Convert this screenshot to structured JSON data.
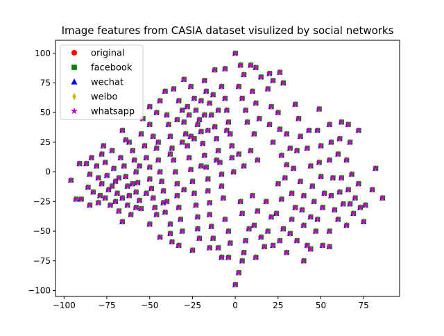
{
  "chart_data": {
    "type": "scatter",
    "title": "Image features from CASIA dataset visulized by social networks",
    "xlabel": "",
    "ylabel": "",
    "xlim": [
      -105,
      96
    ],
    "ylim": [
      -105,
      111
    ],
    "xticks": [
      -100,
      -75,
      -50,
      -25,
      0,
      25,
      50,
      75
    ],
    "yticks": [
      -100,
      -75,
      -50,
      -25,
      0,
      25,
      50,
      75,
      100
    ],
    "grid": false,
    "legend_position": "top-left",
    "series": [
      {
        "name": "original",
        "marker": "circle",
        "color": "#ff0000"
      },
      {
        "name": "facebook",
        "marker": "square",
        "color": "#008000"
      },
      {
        "name": "wechat",
        "marker": "triangle",
        "color": "#0000ff"
      },
      {
        "name": "weibo",
        "marker": "thin-diamond",
        "color": "#bfbf00"
      },
      {
        "name": "whatsapp",
        "marker": "star",
        "color": "#bf00bf"
      }
    ],
    "points": [
      [
        -96,
        -7
      ],
      [
        -93,
        -23
      ],
      [
        -90,
        -23
      ],
      [
        -91,
        7
      ],
      [
        -87,
        7
      ],
      [
        -85,
        -2
      ],
      [
        -86,
        -13
      ],
      [
        -83,
        -17
      ],
      [
        -85,
        -28
      ],
      [
        -84,
        12
      ],
      [
        -81,
        5
      ],
      [
        -80,
        -5
      ],
      [
        -78,
        -10
      ],
      [
        -79,
        -20
      ],
      [
        -80,
        -26
      ],
      [
        -78,
        15
      ],
      [
        -76,
        8
      ],
      [
        -75,
        -3
      ],
      [
        -74,
        -15
      ],
      [
        -76,
        -22
      ],
      [
        -73,
        -28
      ],
      [
        -77,
        22
      ],
      [
        -72,
        18
      ],
      [
        -71,
        3
      ],
      [
        -70,
        -8
      ],
      [
        -69,
        -18
      ],
      [
        -70,
        -25
      ],
      [
        -68,
        -33
      ],
      [
        -66,
        -42
      ],
      [
        -67,
        12
      ],
      [
        -65,
        5
      ],
      [
        -64,
        -4
      ],
      [
        -63,
        -12
      ],
      [
        -62,
        -20
      ],
      [
        -63,
        -28
      ],
      [
        -61,
        -36
      ],
      [
        -62,
        25
      ],
      [
        -60,
        18
      ],
      [
        -59,
        10
      ],
      [
        -58,
        0
      ],
      [
        -57,
        -9
      ],
      [
        -58,
        -17
      ],
      [
        -56,
        -24
      ],
      [
        -55,
        -31
      ],
      [
        -66,
        35
      ],
      [
        -64,
        27
      ],
      [
        -55,
        32
      ],
      [
        -53,
        22
      ],
      [
        -52,
        12
      ],
      [
        -50,
        4
      ],
      [
        -50,
        -6
      ],
      [
        -49,
        -14
      ],
      [
        -48,
        -22
      ],
      [
        -47,
        -30
      ],
      [
        -50,
        -44
      ],
      [
        -44,
        -55
      ],
      [
        -54,
        45
      ],
      [
        -50,
        40
      ],
      [
        -48,
        30
      ],
      [
        -46,
        20
      ],
      [
        -45,
        10
      ],
      [
        -44,
        0
      ],
      [
        -43,
        -8
      ],
      [
        -42,
        -16
      ],
      [
        -42,
        -26
      ],
      [
        -41,
        -34
      ],
      [
        -38,
        -44
      ],
      [
        -38,
        -52
      ],
      [
        -37,
        -59
      ],
      [
        -50,
        55
      ],
      [
        -46,
        50
      ],
      [
        -44,
        60
      ],
      [
        -41,
        68
      ],
      [
        -40,
        48
      ],
      [
        -39,
        40
      ],
      [
        -38,
        30
      ],
      [
        -37,
        20
      ],
      [
        -36,
        10
      ],
      [
        -35,
        0
      ],
      [
        -34,
        -10
      ],
      [
        -34,
        -20
      ],
      [
        -33,
        -30
      ],
      [
        -32,
        -40
      ],
      [
        -31,
        -50
      ],
      [
        -33,
        -62
      ],
      [
        -36,
        70
      ],
      [
        -33,
        60
      ],
      [
        -31,
        52
      ],
      [
        -30,
        42
      ],
      [
        -29,
        32
      ],
      [
        -28,
        22
      ],
      [
        -27,
        12
      ],
      [
        -26,
        2
      ],
      [
        -25,
        -8
      ],
      [
        -24,
        -18
      ],
      [
        -23,
        -28
      ],
      [
        -22,
        -38
      ],
      [
        -22,
        -48
      ],
      [
        -21,
        -56
      ],
      [
        -25,
        -66
      ],
      [
        -30,
        78
      ],
      [
        -26,
        72
      ],
      [
        -24,
        62
      ],
      [
        -23,
        52
      ],
      [
        -21,
        44
      ],
      [
        -20,
        34
      ],
      [
        -19,
        24
      ],
      [
        -18,
        14
      ],
      [
        -17,
        4
      ],
      [
        -16,
        -6
      ],
      [
        -16,
        -16
      ],
      [
        -15,
        -26
      ],
      [
        -15,
        -36
      ],
      [
        -14,
        -46
      ],
      [
        -13,
        -56
      ],
      [
        -15,
        -64
      ],
      [
        -18,
        77
      ],
      [
        -17,
        68
      ],
      [
        -15,
        58
      ],
      [
        -14,
        48
      ],
      [
        -12,
        38
      ],
      [
        -11,
        28
      ],
      [
        -10,
        18
      ],
      [
        -9,
        8
      ],
      [
        -8,
        -2
      ],
      [
        -8,
        -12
      ],
      [
        -7,
        -22
      ],
      [
        -10,
        -64
      ],
      [
        -8,
        -72
      ],
      [
        -12,
        86
      ],
      [
        -6,
        87
      ],
      [
        -8,
        72
      ],
      [
        -6,
        62
      ],
      [
        -5,
        52
      ],
      [
        -4,
        42
      ],
      [
        -3,
        32
      ],
      [
        -2,
        22
      ],
      [
        -2,
        12
      ],
      [
        -1,
        0
      ],
      [
        -6,
        -40
      ],
      [
        -4,
        -50
      ],
      [
        -3,
        -60
      ],
      [
        -4,
        -72
      ],
      [
        0,
        100
      ],
      [
        3,
        90
      ],
      [
        5,
        82
      ],
      [
        2,
        72
      ],
      [
        4,
        62
      ],
      [
        6,
        52
      ],
      [
        7,
        42
      ],
      [
        2,
        15
      ],
      [
        5,
        5
      ],
      [
        3,
        -25
      ],
      [
        4,
        -35
      ],
      [
        8,
        -48
      ],
      [
        6,
        -58
      ],
      [
        5,
        -68
      ],
      [
        2,
        -85
      ],
      [
        0,
        -95
      ],
      [
        4,
        -75
      ],
      [
        9,
        90
      ],
      [
        12,
        88
      ],
      [
        15,
        80
      ],
      [
        10,
        68
      ],
      [
        12,
        58
      ],
      [
        14,
        45
      ],
      [
        11,
        32
      ],
      [
        9,
        18
      ],
      [
        13,
        10
      ],
      [
        10,
        -20
      ],
      [
        13,
        -33
      ],
      [
        11,
        -45
      ],
      [
        15,
        -55
      ],
      [
        17,
        -63
      ],
      [
        12,
        -72
      ],
      [
        20,
        83
      ],
      [
        22,
        77
      ],
      [
        19,
        70
      ],
      [
        21,
        55
      ],
      [
        20,
        40
      ],
      [
        22,
        25
      ],
      [
        18,
        -25
      ],
      [
        21,
        -38
      ],
      [
        19,
        -50
      ],
      [
        22,
        -62
      ],
      [
        26,
        84
      ],
      [
        28,
        75
      ],
      [
        25,
        50
      ],
      [
        26,
        36
      ],
      [
        27,
        14
      ],
      [
        25,
        -10
      ],
      [
        27,
        -23
      ],
      [
        24,
        -35
      ],
      [
        28,
        -48
      ],
      [
        26,
        -58
      ],
      [
        30,
        -68
      ],
      [
        32,
        -52
      ],
      [
        30,
        32
      ],
      [
        32,
        20
      ],
      [
        30,
        6
      ],
      [
        29,
        -5
      ],
      [
        33,
        -18
      ],
      [
        35,
        -30
      ],
      [
        33,
        -40
      ],
      [
        36,
        -58
      ],
      [
        35,
        57
      ],
      [
        37,
        45
      ],
      [
        38,
        30
      ],
      [
        36,
        18
      ],
      [
        34,
        3
      ],
      [
        38,
        -8
      ],
      [
        40,
        -20
      ],
      [
        39,
        -32
      ],
      [
        40,
        -45
      ],
      [
        42,
        -62
      ],
      [
        40,
        -75
      ],
      [
        44,
        -65
      ],
      [
        43,
        35
      ],
      [
        42,
        20
      ],
      [
        44,
        5
      ],
      [
        45,
        -12
      ],
      [
        46,
        -25
      ],
      [
        44,
        -38
      ],
      [
        47,
        -50
      ],
      [
        49,
        53
      ],
      [
        48,
        35
      ],
      [
        50,
        22
      ],
      [
        49,
        8
      ],
      [
        50,
        -4
      ],
      [
        52,
        -18
      ],
      [
        51,
        -30
      ],
      [
        48,
        -40
      ],
      [
        51,
        -62
      ],
      [
        55,
        40
      ],
      [
        56,
        25
      ],
      [
        55,
        10
      ],
      [
        57,
        -5
      ],
      [
        56,
        -20
      ],
      [
        58,
        -32
      ],
      [
        55,
        -50
      ],
      [
        55,
        -63
      ],
      [
        62,
        42
      ],
      [
        61,
        28
      ],
      [
        60,
        15
      ],
      [
        62,
        -5
      ],
      [
        61,
        -17
      ],
      [
        63,
        -27
      ],
      [
        60,
        -40
      ],
      [
        66,
        40
      ],
      [
        67,
        25
      ],
      [
        65,
        10
      ],
      [
        68,
        -2
      ],
      [
        66,
        -15
      ],
      [
        67,
        -27
      ],
      [
        69,
        -35
      ],
      [
        65,
        -45
      ],
      [
        72,
        35
      ],
      [
        72,
        -10
      ],
      [
        70,
        -22
      ],
      [
        73,
        -30
      ],
      [
        75,
        -42
      ],
      [
        76,
        -28
      ],
      [
        80,
        -15
      ],
      [
        82,
        3
      ],
      [
        86,
        -22
      ],
      [
        -27,
        48
      ],
      [
        -22,
        40
      ],
      [
        -18,
        48
      ],
      [
        -16,
        35
      ],
      [
        -26,
        30
      ],
      [
        -31,
        25
      ],
      [
        -38,
        15
      ],
      [
        -45,
        25
      ],
      [
        -56,
        5
      ],
      [
        -60,
        -10
      ],
      [
        -68,
        -5
      ],
      [
        -66,
        -22
      ],
      [
        -72,
        -12
      ],
      [
        -58,
        -30
      ],
      [
        -52,
        -18
      ],
      [
        -46,
        -36
      ],
      [
        -40,
        -25
      ],
      [
        -30,
        -15
      ],
      [
        -20,
        5
      ],
      [
        -11,
        10
      ],
      [
        -28,
        55
      ],
      [
        -34,
        44
      ],
      [
        -20,
        60
      ],
      [
        -13,
        65
      ],
      [
        -10,
        52
      ],
      [
        -5,
        35
      ],
      [
        -24,
        28
      ]
    ]
  },
  "legend": {
    "labels": [
      "original",
      "facebook",
      "wechat",
      "weibo",
      "whatsapp"
    ]
  }
}
